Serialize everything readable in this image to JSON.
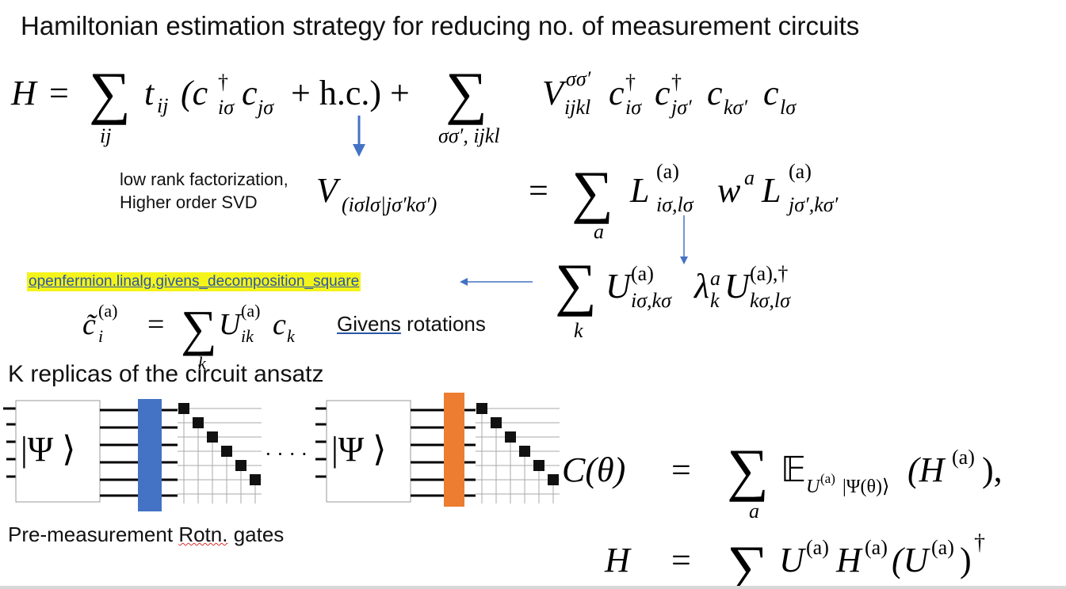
{
  "title": "Hamiltonian estimation strategy for reducing no. of measurement circuits",
  "eq_hamiltonian": {
    "lhs": "H",
    "eq": "=",
    "sum1_index": "ij",
    "t": "t",
    "t_sub": "ij",
    "term1": "(c",
    "dagger": "†",
    "c_i_sub": "iσ",
    "c_j": "c",
    "c_j_sub": "jσ",
    "hc": "+ h.c.) +",
    "sum2_index": "σσ′, ijkl",
    "V": "V",
    "V_sup": "σσ′",
    "V_sub": "ijkl",
    "c1": "c",
    "c1_sub": "iσ",
    "c2": "c",
    "c2_sub": "jσ′",
    "c3": "c",
    "c3_sub": "kσ′",
    "c4": "c",
    "c4_sub": "lσ"
  },
  "factorization_note": {
    "line1": "low rank factorization,",
    "line2": "Higher order SVD"
  },
  "eq_factorization": {
    "V": "V",
    "V_sub": "(iσlσ|jσ′kσ′)",
    "eq": "=",
    "sum_index": "a",
    "L": "L",
    "L1_sup": "(a)",
    "L1_sub": "iσ,lσ",
    "w": "w",
    "w_sup": "a",
    "L2_sup": "(a)",
    "L2_sub": "jσ′,kσ′"
  },
  "eq_diag": {
    "sum_index": "k",
    "U": "U",
    "U1_sup": "(a)",
    "U1_sub": "iσ,kσ",
    "lambda": "λ",
    "lambda_sup": "a",
    "lambda_sub": "k",
    "U2_sup": "(a),†",
    "U2_sub": "kσ,lσ"
  },
  "openfermion_link": "openfermion.linalg.givens_decomposition_square",
  "eq_givens": {
    "c": "c̃",
    "c_sup": "(a)",
    "c_sub": "i",
    "eq": "=",
    "sum_index": "k",
    "U": "U",
    "U_sup": "(a)",
    "U_sub": "ik",
    "ck": "c",
    "ck_sub": "k"
  },
  "givens_label_word": "Givens",
  "givens_label_rest": " rotations",
  "replicas_label": "K replicas of the circuit ansatz",
  "circuit": {
    "state_label": "|Ψ ⟩",
    "dots": "· · · ·",
    "block1_color": "#4472c4",
    "block2_color": "#ed7d31",
    "gate_count": 6
  },
  "pre_measurement_prefix": "Pre-measurement ",
  "pre_measurement_word": "Rotn.",
  "pre_measurement_suffix": " gates",
  "eq_cost": {
    "lhs": "C(θ)",
    "eq": "=",
    "sum_index": "a",
    "E": "𝔼",
    "E_sub": "U",
    "E_sub_sup": "(a)",
    "E_sub_rest": "|Ψ(θ)⟩",
    "H": "(H",
    "H_sup": "(a)",
    "H_close": "),"
  },
  "eq_H_total": {
    "lhs": "H",
    "eq": "=",
    "U": "U",
    "U_sup": "(a)",
    "H": "H",
    "H_sup": "(a)",
    "U2": "(U",
    "U2_sup": "(a)",
    "close": ")",
    "dagger": "†"
  },
  "colors": {
    "arrow_blue": "#4472c4",
    "highlight": "#f4f41a",
    "link_blue": "#2a56a6"
  }
}
